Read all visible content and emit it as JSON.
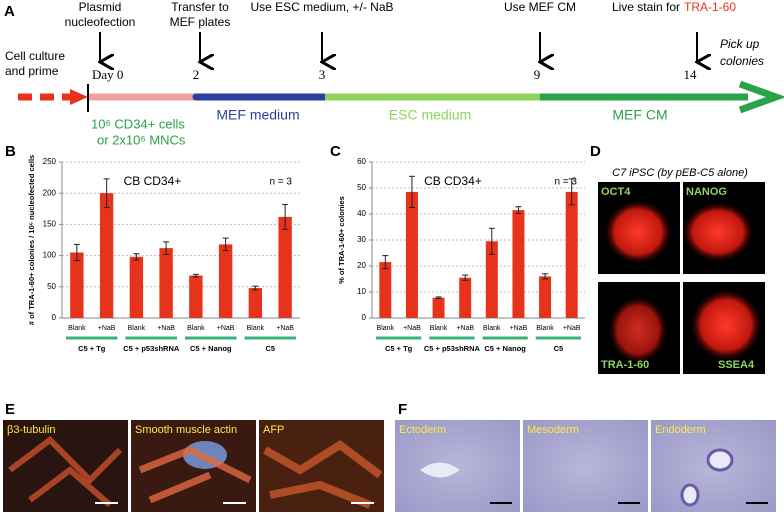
{
  "panel_a": {
    "letter": "A",
    "events": [
      [
        "Plasmid",
        "nucleofection"
      ],
      [
        "Transfer to",
        "MEF plates"
      ],
      [
        "Use ESC medium, +/- NaB"
      ],
      [
        "Use MEF CM"
      ]
    ],
    "live_stain": "Live stain for",
    "live_stain_marker": "TRA-1-60",
    "start": [
      "Cell culture",
      "and prime"
    ],
    "end": [
      "Pick up",
      "colonies"
    ],
    "days": [
      "Day 0",
      "2",
      "3",
      "9",
      "14"
    ],
    "phases": [
      "MEF medium",
      "ESC medium",
      "MEF CM"
    ],
    "cells": [
      "10⁶ CD34+ cells",
      "or 2x10⁶ MNCs"
    ]
  },
  "chart_data": [
    {
      "type": "bar",
      "panel": "B",
      "title": "CB CD34+",
      "note": "n = 3",
      "y_label": "# of TRA-1-60+ colonies / 10⁶ nucleofected cells",
      "categories": [
        "Blank",
        "+NaB",
        "Blank",
        "+NaB",
        "Blank",
        "+NaB",
        "Blank",
        "+NaB"
      ],
      "groups": [
        "C5 + Tg",
        "C5 + p53shRNA",
        "C5 + Nanog",
        "C5"
      ],
      "values": [
        105,
        200,
        98,
        112,
        68,
        118,
        48,
        162
      ],
      "errors": [
        13,
        23,
        5,
        10,
        2,
        10,
        3,
        20
      ],
      "color": "#e8331c",
      "group_color": "#3bb07a",
      "ylim": [
        0,
        250
      ],
      "yticks": [
        0,
        50,
        100,
        150,
        200,
        250
      ],
      "grid": true
    },
    {
      "type": "bar",
      "panel": "C",
      "title": "CB CD34+",
      "note": "n = 3",
      "y_label": "% of TRA-1-60+ colonies",
      "categories": [
        "Blank",
        "+NaB",
        "Blank",
        "+NaB",
        "Blank",
        "+NaB",
        "Blank",
        "+NaB"
      ],
      "groups": [
        "C5 + Tg",
        "C5 + p53shRNA",
        "C5 + Nanog",
        "C5"
      ],
      "values": [
        21.5,
        48.5,
        7.8,
        15.5,
        29.5,
        41.5,
        16,
        48.5
      ],
      "errors": [
        2.5,
        6,
        0.3,
        1,
        5,
        1.3,
        1,
        5
      ],
      "color": "#e8331c",
      "group_color": "#3bb07a",
      "ylim": [
        0,
        60
      ],
      "yticks": [
        0,
        10,
        20,
        30,
        40,
        50,
        60
      ],
      "grid": true
    }
  ],
  "panel_d": {
    "letter": "D",
    "caption": "C7 iPSC (by pEB-C5 alone)",
    "labels": [
      "OCT4",
      "NANOG",
      "TRA-1-60",
      "SSEA4"
    ]
  },
  "panel_e": {
    "letter": "E",
    "labels": [
      "β3-tubulin",
      "Smooth muscle actin",
      "AFP"
    ]
  },
  "panel_f": {
    "letter": "F",
    "labels": [
      "Ectoderm",
      "Mesoderm",
      "Endoderm"
    ]
  }
}
